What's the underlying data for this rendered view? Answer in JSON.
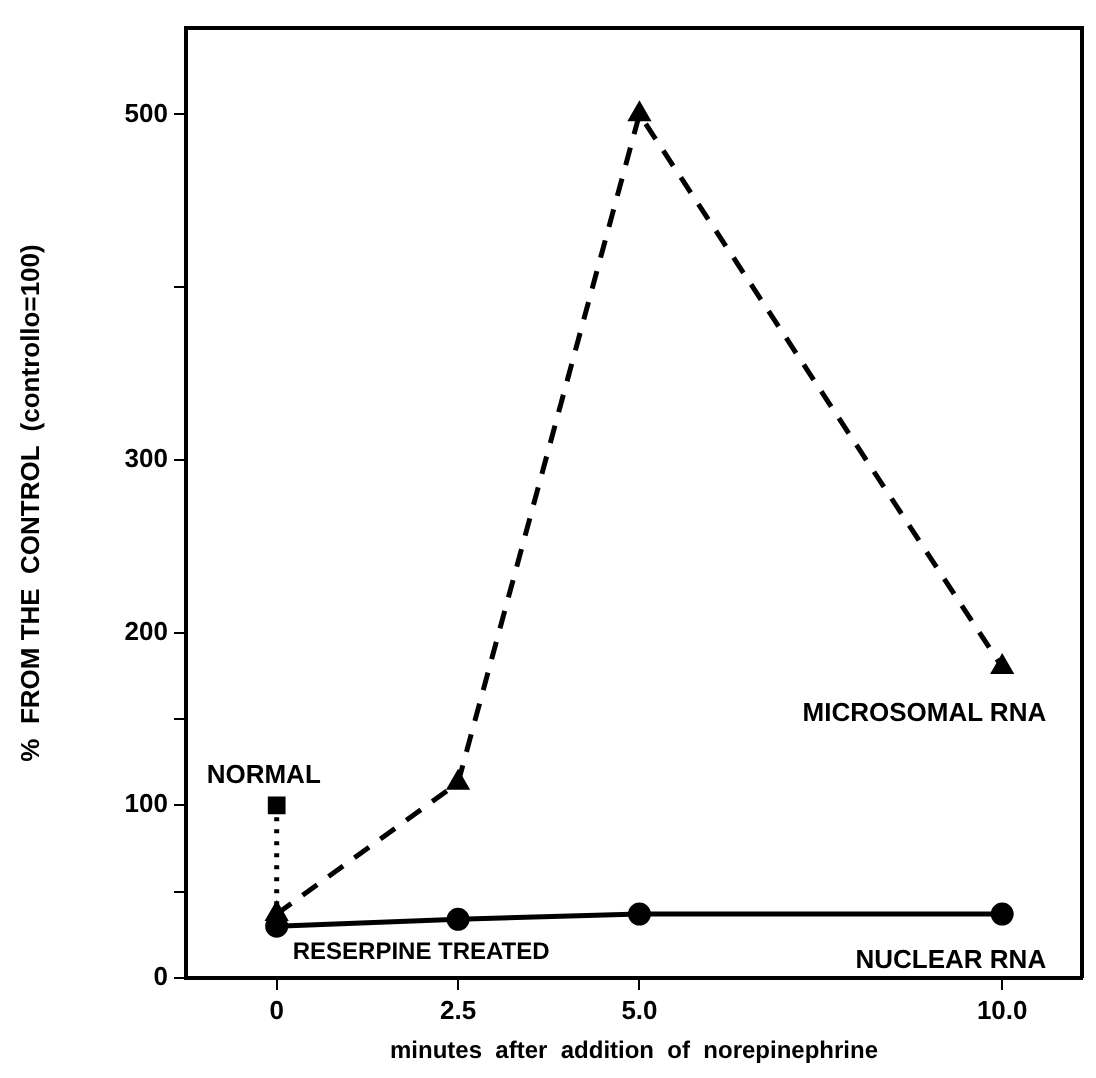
{
  "chart_data": {
    "type": "line",
    "xlabel": "minutes  after  addition  of  norepinephrine",
    "ylabel": "%  FROM THE  CONTROL  (controllo=100)",
    "xlim": [
      -1.25,
      11.1
    ],
    "xticks": [
      0,
      2.5,
      {
        "value": 5,
        "label": "5.0"
      },
      {
        "value": 10,
        "label": "10.0"
      }
    ],
    "ylim": [
      0,
      550
    ],
    "yticks": [
      0,
      {
        "value": 50,
        "label": null
      },
      100,
      {
        "value": 150,
        "label": null
      },
      200,
      300,
      {
        "value": 400,
        "label": null
      },
      500
    ],
    "grid": false,
    "legend": false,
    "series": [
      {
        "name": "MICROSOMAL RNA",
        "color": "#000000",
        "x": [
          0,
          2.5,
          5,
          10
        ],
        "values": [
          37,
          113,
          500,
          180
        ],
        "line_style": "dashed",
        "marker": "triangle"
      },
      {
        "name": "NUCLEAR RNA",
        "color": "#000000",
        "x": [
          0,
          2.5,
          5,
          10
        ],
        "values": [
          30,
          34,
          37,
          37
        ],
        "line_style": "solid",
        "marker": "circle"
      },
      {
        "color": "#000000",
        "x": [
          0,
          0
        ],
        "values": [
          100,
          37
        ],
        "line_style": "dotted",
        "marker": "square"
      }
    ],
    "annotations": [
      {
        "text": "NORMAL",
        "x": 0,
        "y": 100
      },
      {
        "text": "RESERPINE TREATED",
        "x": 0,
        "y": 30
      }
    ]
  }
}
